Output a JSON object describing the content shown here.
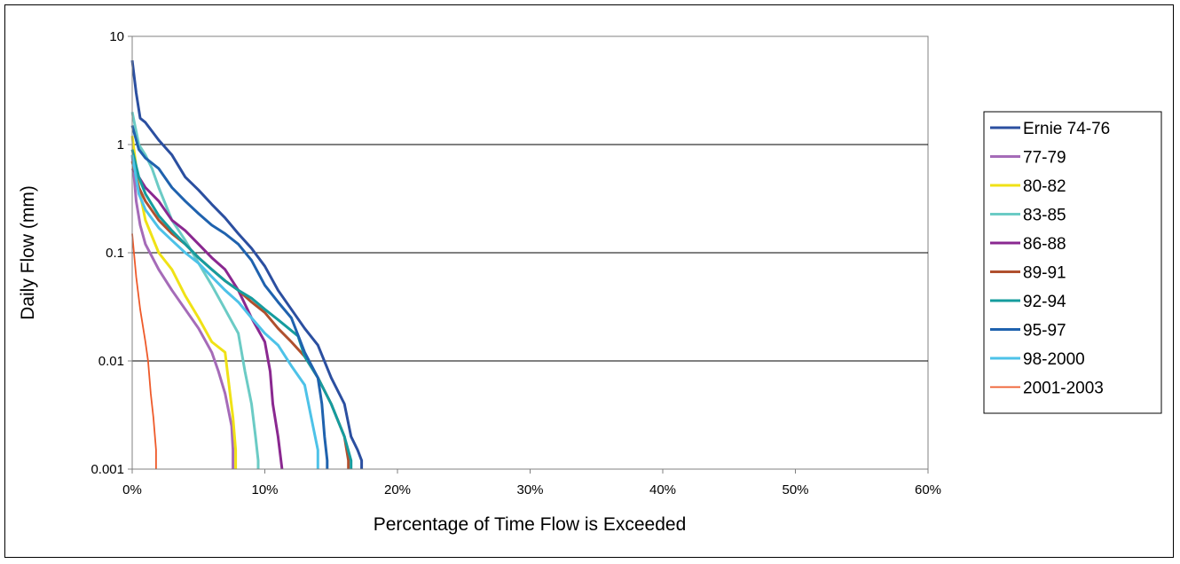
{
  "chart_data": {
    "type": "line",
    "xlabel": "Percentage of Time Flow is Exceeded",
    "ylabel": "Daily Flow (mm)",
    "x_unit": "%",
    "xlim": [
      0,
      60
    ],
    "ylim": [
      0.001,
      10
    ],
    "y_scale": "log",
    "x_ticks": [
      0,
      10,
      20,
      30,
      40,
      50,
      60
    ],
    "x_tick_labels": [
      "0%",
      "10%",
      "20%",
      "30%",
      "40%",
      "50%",
      "60%"
    ],
    "y_ticks": [
      0.001,
      0.01,
      0.1,
      1,
      10
    ],
    "y_tick_labels": [
      "0.001",
      "0.01",
      "0.1",
      "1",
      "10"
    ],
    "grid": "horizontal",
    "legend_position": "right",
    "series": [
      {
        "name": "Ernie 74-76",
        "color": "#2B4FA0",
        "points": [
          [
            0,
            6
          ],
          [
            0.3,
            3
          ],
          [
            0.6,
            1.75
          ],
          [
            1,
            1.6
          ],
          [
            2,
            1.1
          ],
          [
            3,
            0.8
          ],
          [
            4,
            0.5
          ],
          [
            5,
            0.38
          ],
          [
            6,
            0.28
          ],
          [
            7,
            0.21
          ],
          [
            8,
            0.15
          ],
          [
            9,
            0.11
          ],
          [
            10,
            0.075
          ],
          [
            11,
            0.045
          ],
          [
            12,
            0.03
          ],
          [
            13,
            0.02
          ],
          [
            14,
            0.014
          ],
          [
            15,
            0.007
          ],
          [
            16,
            0.004
          ],
          [
            16.5,
            0.002
          ],
          [
            17,
            0.0015
          ],
          [
            17.3,
            0.0012
          ],
          [
            17.3,
            0.001
          ]
        ]
      },
      {
        "name": "77-79",
        "color": "#A56BB8",
        "points": [
          [
            0,
            0.8
          ],
          [
            0.3,
            0.3
          ],
          [
            0.6,
            0.18
          ],
          [
            1,
            0.12
          ],
          [
            2,
            0.07
          ],
          [
            3,
            0.045
          ],
          [
            4,
            0.03
          ],
          [
            5,
            0.02
          ],
          [
            6,
            0.012
          ],
          [
            6.5,
            0.008
          ],
          [
            7,
            0.005
          ],
          [
            7.5,
            0.0025
          ],
          [
            7.6,
            0.0015
          ],
          [
            7.6,
            0.001
          ]
        ]
      },
      {
        "name": "80-82",
        "color": "#F0E216",
        "points": [
          [
            0,
            1.2
          ],
          [
            0.5,
            0.4
          ],
          [
            1,
            0.2
          ],
          [
            2,
            0.1
          ],
          [
            3,
            0.07
          ],
          [
            4,
            0.04
          ],
          [
            5,
            0.025
          ],
          [
            6,
            0.015
          ],
          [
            7,
            0.012
          ],
          [
            7.3,
            0.006
          ],
          [
            7.6,
            0.003
          ],
          [
            7.8,
            0.0015
          ],
          [
            7.8,
            0.001
          ]
        ]
      },
      {
        "name": "83-85",
        "color": "#6BCBC5",
        "points": [
          [
            0,
            2
          ],
          [
            0.5,
            1
          ],
          [
            1,
            0.8
          ],
          [
            1.5,
            0.6
          ],
          [
            2,
            0.4
          ],
          [
            3,
            0.2
          ],
          [
            4,
            0.13
          ],
          [
            5,
            0.08
          ],
          [
            6,
            0.05
          ],
          [
            7,
            0.03
          ],
          [
            8,
            0.018
          ],
          [
            8.5,
            0.008
          ],
          [
            9,
            0.004
          ],
          [
            9.3,
            0.002
          ],
          [
            9.5,
            0.0012
          ],
          [
            9.5,
            0.001
          ]
        ]
      },
      {
        "name": "86-88",
        "color": "#8A2890",
        "points": [
          [
            0,
            0.6
          ],
          [
            0.5,
            0.5
          ],
          [
            1,
            0.4
          ],
          [
            2,
            0.3
          ],
          [
            3,
            0.2
          ],
          [
            4,
            0.16
          ],
          [
            5,
            0.12
          ],
          [
            6,
            0.09
          ],
          [
            7,
            0.07
          ],
          [
            8,
            0.045
          ],
          [
            9,
            0.025
          ],
          [
            10,
            0.015
          ],
          [
            10.4,
            0.008
          ],
          [
            10.6,
            0.004
          ],
          [
            11,
            0.002
          ],
          [
            11.3,
            0.001
          ]
        ]
      },
      {
        "name": "89-91",
        "color": "#B0502E",
        "points": [
          [
            0,
            0.7
          ],
          [
            0.5,
            0.4
          ],
          [
            1,
            0.3
          ],
          [
            2,
            0.2
          ],
          [
            3,
            0.15
          ],
          [
            4,
            0.12
          ],
          [
            5,
            0.09
          ],
          [
            6,
            0.07
          ],
          [
            7,
            0.055
          ],
          [
            8,
            0.045
          ],
          [
            9,
            0.035
          ],
          [
            10,
            0.028
          ],
          [
            11,
            0.02
          ],
          [
            12,
            0.015
          ],
          [
            13,
            0.011
          ],
          [
            14,
            0.007
          ],
          [
            15,
            0.004
          ],
          [
            16,
            0.002
          ],
          [
            16.3,
            0.0012
          ],
          [
            16.3,
            0.001
          ]
        ]
      },
      {
        "name": "92-94",
        "color": "#159C9E",
        "points": [
          [
            0,
            0.9
          ],
          [
            0.5,
            0.5
          ],
          [
            1,
            0.35
          ],
          [
            2,
            0.22
          ],
          [
            3,
            0.16
          ],
          [
            4,
            0.12
          ],
          [
            5,
            0.09
          ],
          [
            6,
            0.07
          ],
          [
            7,
            0.055
          ],
          [
            8,
            0.045
          ],
          [
            9,
            0.038
          ],
          [
            10,
            0.03
          ],
          [
            11,
            0.024
          ],
          [
            12.5,
            0.017
          ],
          [
            13,
            0.011
          ],
          [
            14,
            0.007
          ],
          [
            15,
            0.004
          ],
          [
            16,
            0.002
          ],
          [
            16.5,
            0.0012
          ],
          [
            16.5,
            0.001
          ]
        ]
      },
      {
        "name": "95-97",
        "color": "#1F62AE",
        "points": [
          [
            0,
            1.5
          ],
          [
            0.5,
            0.9
          ],
          [
            1,
            0.75
          ],
          [
            2,
            0.6
          ],
          [
            3,
            0.4
          ],
          [
            4,
            0.3
          ],
          [
            5,
            0.23
          ],
          [
            6,
            0.18
          ],
          [
            7,
            0.15
          ],
          [
            8,
            0.12
          ],
          [
            9,
            0.085
          ],
          [
            10,
            0.05
          ],
          [
            11,
            0.035
          ],
          [
            12,
            0.025
          ],
          [
            13,
            0.012
          ],
          [
            14,
            0.007
          ],
          [
            14.3,
            0.004
          ],
          [
            14.5,
            0.002
          ],
          [
            14.7,
            0.0012
          ],
          [
            14.7,
            0.001
          ]
        ]
      },
      {
        "name": "98-2000",
        "color": "#4DC2E8",
        "points": [
          [
            0,
            0.8
          ],
          [
            0.5,
            0.35
          ],
          [
            1,
            0.25
          ],
          [
            2,
            0.17
          ],
          [
            3,
            0.13
          ],
          [
            4,
            0.1
          ],
          [
            5,
            0.08
          ],
          [
            6,
            0.06
          ],
          [
            7,
            0.045
          ],
          [
            8,
            0.035
          ],
          [
            9,
            0.025
          ],
          [
            10,
            0.018
          ],
          [
            11,
            0.014
          ],
          [
            12,
            0.009
          ],
          [
            13,
            0.006
          ],
          [
            13.5,
            0.003
          ],
          [
            14,
            0.0015
          ],
          [
            14,
            0.001
          ]
        ]
      },
      {
        "name": "2001-2003",
        "color": "#EE5A2A",
        "points": [
          [
            0,
            0.15
          ],
          [
            0.3,
            0.06
          ],
          [
            0.6,
            0.03
          ],
          [
            1,
            0.015
          ],
          [
            1.2,
            0.01
          ],
          [
            1.4,
            0.005
          ],
          [
            1.6,
            0.003
          ],
          [
            1.8,
            0.0015
          ],
          [
            1.8,
            0.001
          ]
        ]
      }
    ]
  }
}
